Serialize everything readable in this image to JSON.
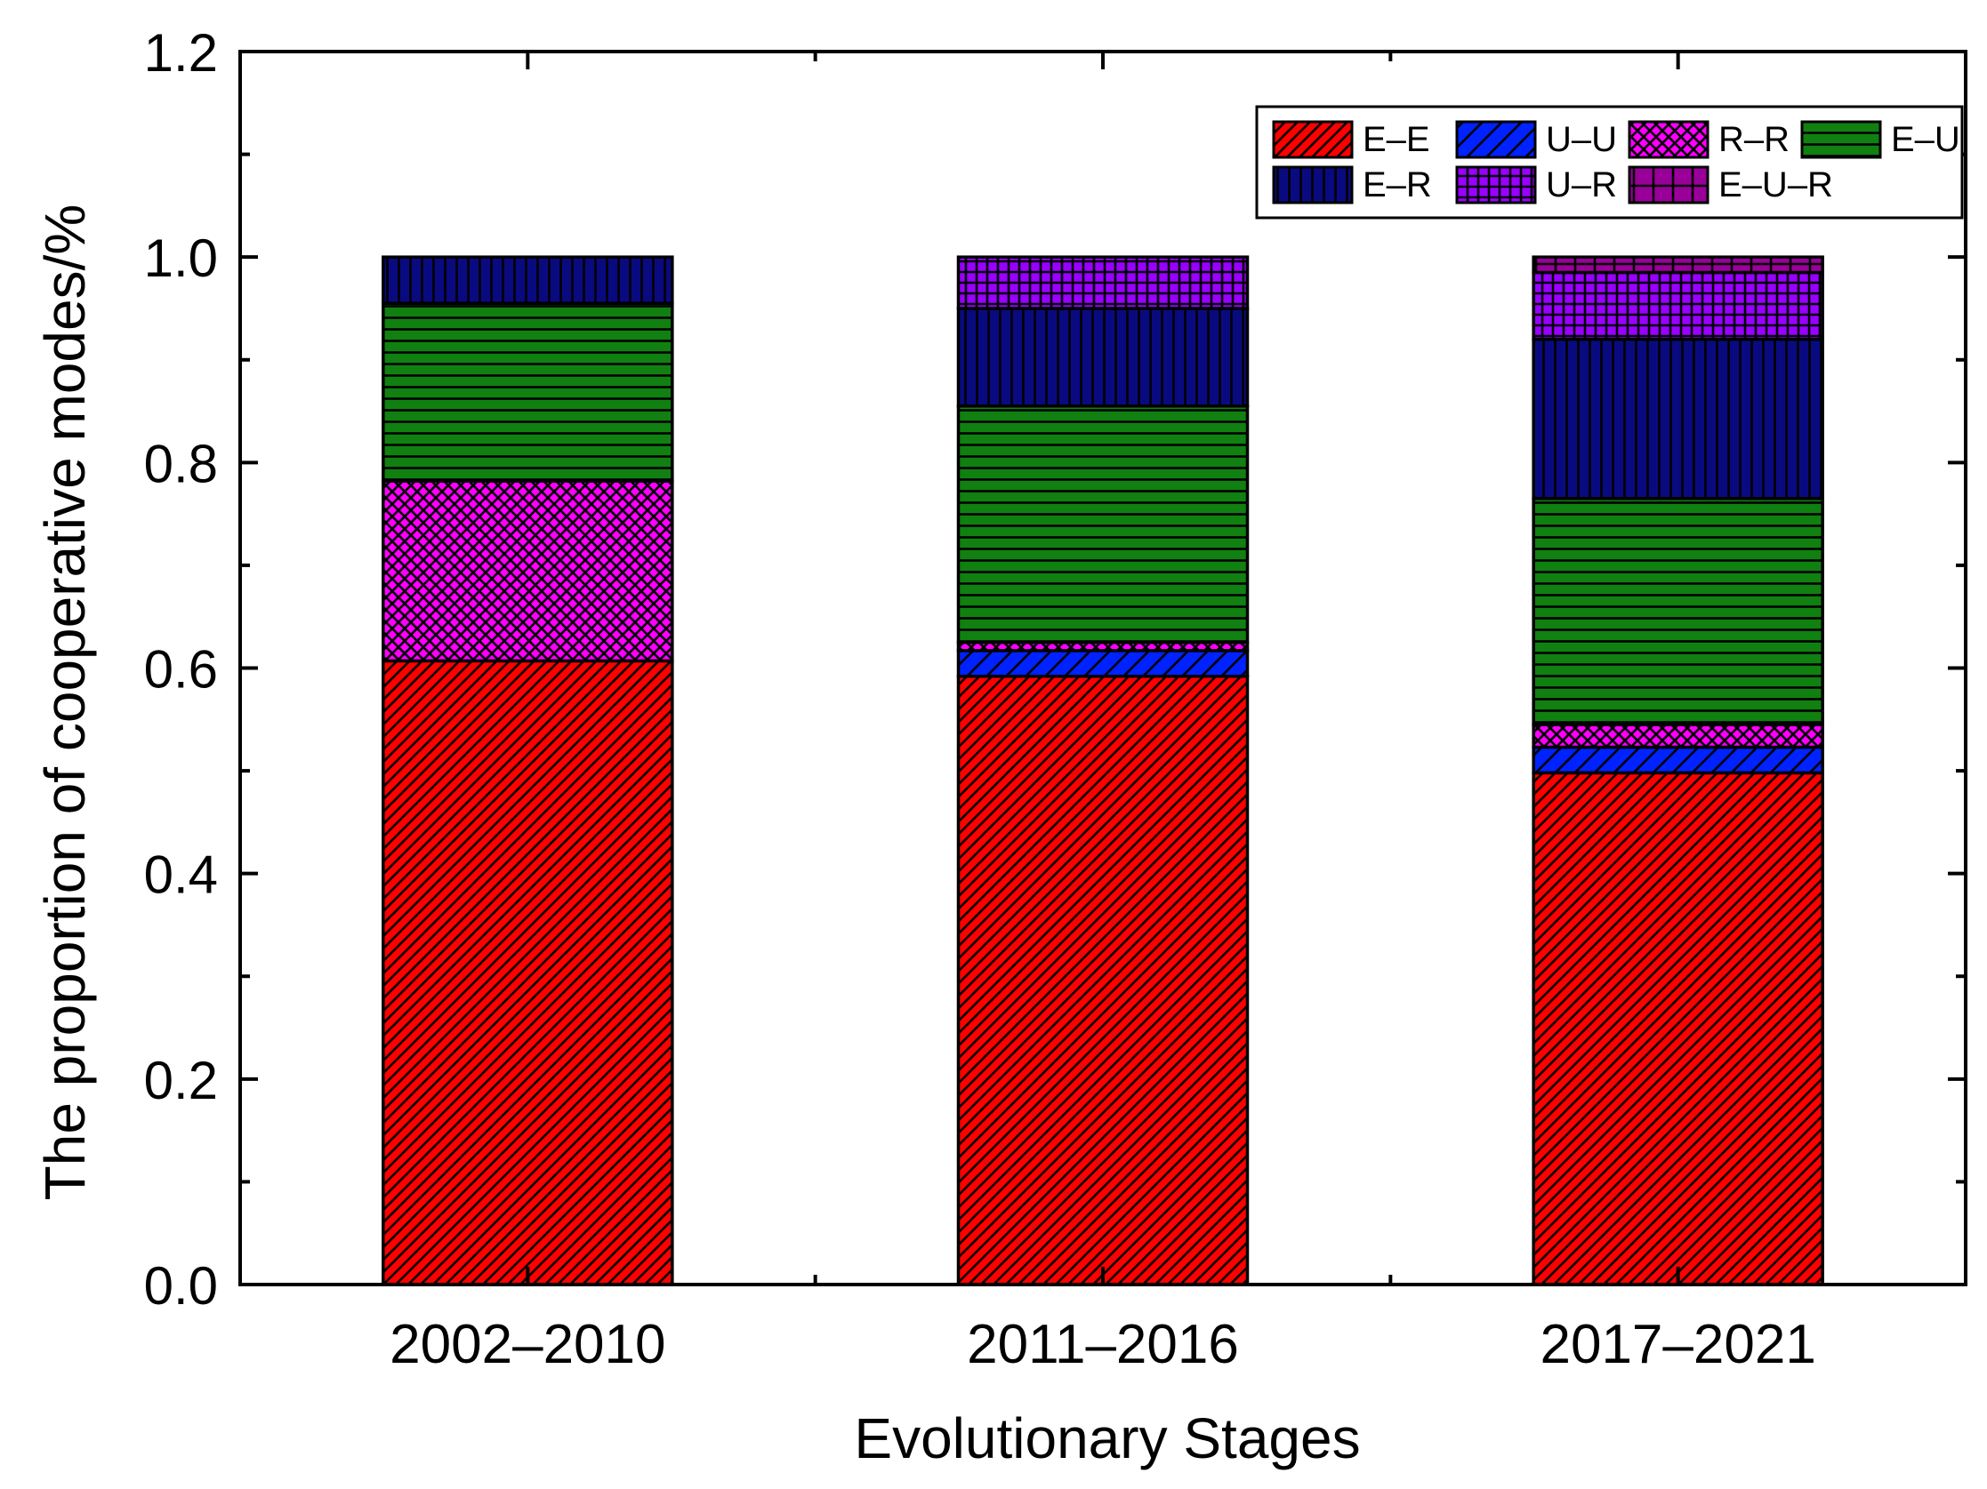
{
  "chart_data": {
    "type": "bar",
    "stacked": true,
    "title": "",
    "xlabel": "Evolutionary Stages",
    "ylabel": "The proportion of cooperative modes/%",
    "ylim": [
      0,
      1.2
    ],
    "yticks": [
      0.0,
      0.2,
      0.4,
      0.6,
      0.8,
      1.0,
      1.2
    ],
    "ytick_labels": [
      "0.0",
      "0.2",
      "0.4",
      "0.6",
      "0.8",
      "1.0",
      "1.2"
    ],
    "categories": [
      "2002–2010",
      "2011–2016",
      "2017–2021"
    ],
    "legend_position": "top-right",
    "series": [
      {
        "name": "E–E",
        "color": "#ff0000",
        "pattern": "diag-right",
        "values": [
          0.607,
          0.592,
          0.498
        ]
      },
      {
        "name": "U–U",
        "color": "#0022ff",
        "pattern": "diag-right-wide",
        "values": [
          0.0,
          0.025,
          0.025
        ]
      },
      {
        "name": "R–R",
        "color": "#ff00ff",
        "pattern": "crosshatch",
        "values": [
          0.175,
          0.008,
          0.022
        ]
      },
      {
        "name": "E–U",
        "color": "#108010",
        "pattern": "horizontal",
        "values": [
          0.173,
          0.23,
          0.22
        ]
      },
      {
        "name": "E–R",
        "color": "#0a0a80",
        "pattern": "vertical",
        "values": [
          0.045,
          0.095,
          0.155
        ]
      },
      {
        "name": "U–R",
        "color": "#9900ff",
        "pattern": "grid",
        "values": [
          0.0,
          0.05,
          0.065
        ]
      },
      {
        "name": "E–U–R",
        "color": "#990099",
        "pattern": "grid-wide",
        "values": [
          0.0,
          0.0,
          0.015
        ]
      }
    ]
  }
}
